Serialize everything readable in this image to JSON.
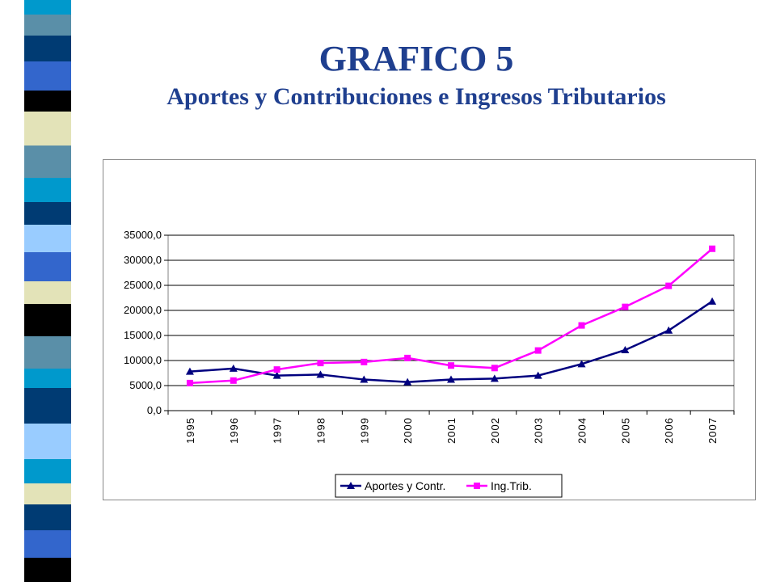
{
  "slide": {
    "title": "GRAFICO 5",
    "subtitle": "Aportes y Contribuciones e Ingresos Tributarios"
  },
  "colors": {
    "title": "#1f3f8f",
    "series_1": "#00007f",
    "series_2": "#ff00ff"
  },
  "chart_data": {
    "type": "line",
    "x": [
      "1995",
      "1996",
      "1997",
      "1998",
      "1999",
      "2000",
      "2001",
      "2002",
      "2003",
      "2004",
      "2005",
      "2006",
      "2007"
    ],
    "series": [
      {
        "name": "Aportes y Contr.",
        "marker": "triangle",
        "color": "#00007f",
        "values": [
          7800,
          8400,
          7000,
          7200,
          6200,
          5700,
          6200,
          6400,
          7000,
          9300,
          12100,
          16000,
          21800
        ]
      },
      {
        "name": "Ing.Trib.",
        "marker": "square",
        "color": "#ff00ff",
        "values": [
          5500,
          6000,
          8200,
          9500,
          9700,
          10500,
          9000,
          8500,
          12000,
          17000,
          20700,
          24900,
          32300
        ]
      }
    ],
    "ylim": [
      0,
      35000
    ],
    "y_ticks": [
      "0,0",
      "5000,0",
      "10000,0",
      "15000,0",
      "20000,0",
      "25000,0",
      "30000,0",
      "35000,0"
    ],
    "y_tick_values": [
      0,
      5000,
      10000,
      15000,
      20000,
      25000,
      30000,
      35000
    ],
    "grid": true,
    "legend_position": "bottom",
    "xlabel": "",
    "ylabel": "",
    "title": ""
  }
}
